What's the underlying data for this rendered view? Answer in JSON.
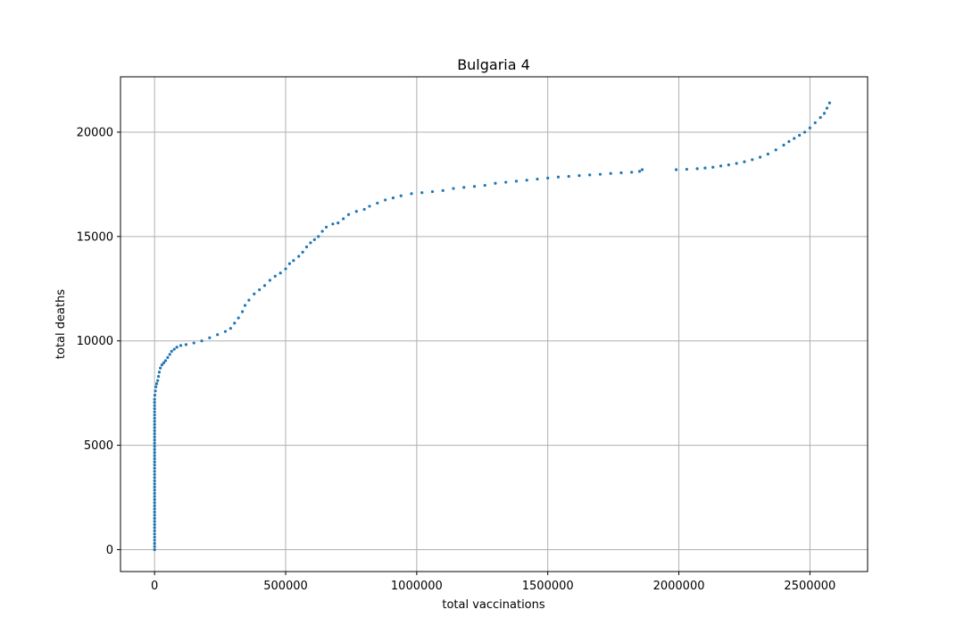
{
  "chart_data": {
    "type": "scatter",
    "title": "Bulgaria 4",
    "xlabel": "total vaccinations",
    "ylabel": "total deaths",
    "xlim": [
      -130000,
      2720000
    ],
    "ylim": [
      -1050,
      22650
    ],
    "xticks": [
      0,
      500000,
      1000000,
      1500000,
      2000000,
      2500000
    ],
    "xtick_labels": [
      "0",
      "500000",
      "1000000",
      "1500000",
      "2000000",
      "2500000"
    ],
    "yticks": [
      0,
      5000,
      10000,
      15000,
      20000
    ],
    "ytick_labels": [
      "0",
      "5000",
      "10000",
      "15000",
      "20000"
    ],
    "grid": true,
    "color": "#1f77b4",
    "points": [
      [
        0,
        0
      ],
      [
        0,
        150
      ],
      [
        0,
        300
      ],
      [
        0,
        450
      ],
      [
        0,
        600
      ],
      [
        0,
        750
      ],
      [
        0,
        900
      ],
      [
        0,
        1050
      ],
      [
        0,
        1200
      ],
      [
        0,
        1350
      ],
      [
        0,
        1500
      ],
      [
        0,
        1650
      ],
      [
        0,
        1800
      ],
      [
        0,
        1950
      ],
      [
        0,
        2100
      ],
      [
        0,
        2250
      ],
      [
        0,
        2400
      ],
      [
        0,
        2550
      ],
      [
        0,
        2700
      ],
      [
        0,
        2850
      ],
      [
        0,
        3000
      ],
      [
        0,
        3150
      ],
      [
        0,
        3300
      ],
      [
        0,
        3450
      ],
      [
        0,
        3600
      ],
      [
        0,
        3750
      ],
      [
        0,
        3900
      ],
      [
        0,
        4050
      ],
      [
        0,
        4200
      ],
      [
        0,
        4350
      ],
      [
        0,
        4500
      ],
      [
        0,
        4650
      ],
      [
        0,
        4800
      ],
      [
        0,
        4950
      ],
      [
        0,
        5100
      ],
      [
        0,
        5250
      ],
      [
        0,
        5400
      ],
      [
        0,
        5550
      ],
      [
        0,
        5700
      ],
      [
        0,
        5850
      ],
      [
        0,
        6000
      ],
      [
        0,
        6150
      ],
      [
        0,
        6300
      ],
      [
        0,
        6450
      ],
      [
        0,
        6600
      ],
      [
        0,
        6750
      ],
      [
        0,
        6900
      ],
      [
        0,
        7050
      ],
      [
        0,
        7200
      ],
      [
        1000,
        7400
      ],
      [
        3000,
        7600
      ],
      [
        5000,
        7800
      ],
      [
        8000,
        7950
      ],
      [
        12000,
        8100
      ],
      [
        15000,
        8300
      ],
      [
        18000,
        8500
      ],
      [
        22000,
        8700
      ],
      [
        28000,
        8850
      ],
      [
        35000,
        8950
      ],
      [
        42000,
        9050
      ],
      [
        50000,
        9200
      ],
      [
        58000,
        9350
      ],
      [
        65000,
        9500
      ],
      [
        75000,
        9600
      ],
      [
        85000,
        9700
      ],
      [
        100000,
        9780
      ],
      [
        120000,
        9820
      ],
      [
        150000,
        9900
      ],
      [
        180000,
        10000
      ],
      [
        210000,
        10150
      ],
      [
        240000,
        10300
      ],
      [
        270000,
        10450
      ],
      [
        290000,
        10600
      ],
      [
        305000,
        10850
      ],
      [
        320000,
        11100
      ],
      [
        335000,
        11400
      ],
      [
        345000,
        11700
      ],
      [
        360000,
        11950
      ],
      [
        380000,
        12250
      ],
      [
        400000,
        12450
      ],
      [
        420000,
        12650
      ],
      [
        440000,
        12900
      ],
      [
        460000,
        13100
      ],
      [
        480000,
        13250
      ],
      [
        500000,
        13450
      ],
      [
        515000,
        13700
      ],
      [
        530000,
        13850
      ],
      [
        550000,
        14050
      ],
      [
        565000,
        14250
      ],
      [
        580000,
        14500
      ],
      [
        595000,
        14700
      ],
      [
        610000,
        14850
      ],
      [
        625000,
        15000
      ],
      [
        640000,
        15250
      ],
      [
        655000,
        15450
      ],
      [
        680000,
        15600
      ],
      [
        700000,
        15650
      ],
      [
        720000,
        15850
      ],
      [
        740000,
        16050
      ],
      [
        770000,
        16200
      ],
      [
        800000,
        16300
      ],
      [
        820000,
        16450
      ],
      [
        850000,
        16600
      ],
      [
        880000,
        16750
      ],
      [
        910000,
        16850
      ],
      [
        940000,
        16950
      ],
      [
        980000,
        17050
      ],
      [
        1020000,
        17100
      ],
      [
        1060000,
        17150
      ],
      [
        1100000,
        17200
      ],
      [
        1140000,
        17300
      ],
      [
        1180000,
        17350
      ],
      [
        1220000,
        17400
      ],
      [
        1260000,
        17450
      ],
      [
        1300000,
        17550
      ],
      [
        1340000,
        17600
      ],
      [
        1380000,
        17650
      ],
      [
        1420000,
        17700
      ],
      [
        1460000,
        17750
      ],
      [
        1500000,
        17800
      ],
      [
        1540000,
        17850
      ],
      [
        1580000,
        17880
      ],
      [
        1620000,
        17920
      ],
      [
        1660000,
        17950
      ],
      [
        1700000,
        17980
      ],
      [
        1740000,
        18020
      ],
      [
        1780000,
        18050
      ],
      [
        1820000,
        18080
      ],
      [
        1850000,
        18120
      ],
      [
        1860000,
        18200
      ],
      [
        1990000,
        18200
      ],
      [
        2030000,
        18220
      ],
      [
        2070000,
        18250
      ],
      [
        2100000,
        18280
      ],
      [
        2130000,
        18320
      ],
      [
        2160000,
        18380
      ],
      [
        2190000,
        18430
      ],
      [
        2220000,
        18500
      ],
      [
        2250000,
        18580
      ],
      [
        2280000,
        18680
      ],
      [
        2310000,
        18800
      ],
      [
        2340000,
        18950
      ],
      [
        2370000,
        19150
      ],
      [
        2400000,
        19380
      ],
      [
        2420000,
        19550
      ],
      [
        2440000,
        19700
      ],
      [
        2460000,
        19850
      ],
      [
        2480000,
        20000
      ],
      [
        2500000,
        20200
      ],
      [
        2520000,
        20450
      ],
      [
        2540000,
        20700
      ],
      [
        2555000,
        20900
      ],
      [
        2565000,
        21150
      ],
      [
        2575000,
        21400
      ]
    ]
  }
}
